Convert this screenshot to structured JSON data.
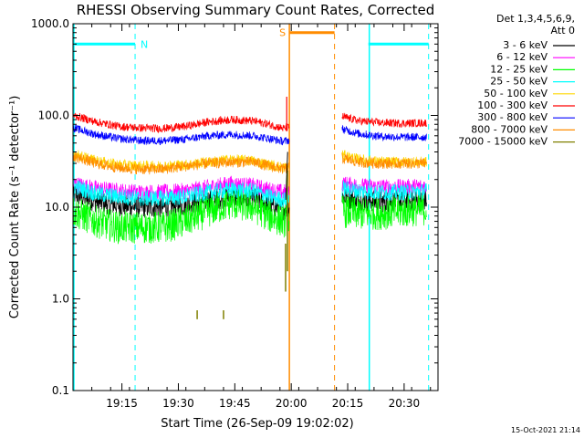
{
  "chart_data": {
    "type": "line",
    "title": "RHESSI Observing Summary Count Rates, Corrected",
    "xlabel": "Start Time (26-Sep-09 19:02:02)",
    "ylabel": "Corrected Count Rate (s⁻¹ detector⁻¹)",
    "y_scale": "log",
    "ylim": [
      0.1,
      1000
    ],
    "xlim_minutes": [
      0,
      97
    ],
    "x_ticks": [
      {
        "minute": 13,
        "label": "19:15"
      },
      {
        "minute": 28,
        "label": "19:30"
      },
      {
        "minute": 43,
        "label": "19:45"
      },
      {
        "minute": 58,
        "label": "20:00"
      },
      {
        "minute": 73,
        "label": "20:15"
      },
      {
        "minute": 88,
        "label": "20:30"
      }
    ],
    "y_ticks": [
      {
        "value": 0.1,
        "label": "0.1"
      },
      {
        "value": 1,
        "label": "1.0"
      },
      {
        "value": 10,
        "label": "10.0"
      },
      {
        "value": 100,
        "label": "100.0"
      },
      {
        "value": 1000,
        "label": "1000.0"
      }
    ],
    "legend_header": [
      "Det 1,3,4,5,6,9,",
      "Att 0"
    ],
    "legend_position": "right",
    "timestamp": "15-Oct-2021 21:14",
    "gap_minutes": [
      57.5,
      71.5
    ],
    "series": [
      {
        "name": "3 - 6 keV",
        "color": "#000000",
        "noise": 0.08,
        "values": [
          [
            0,
            14
          ],
          [
            6,
            11.5
          ],
          [
            12,
            10.5
          ],
          [
            18,
            10
          ],
          [
            24,
            10
          ],
          [
            30,
            10.5
          ],
          [
            36,
            12
          ],
          [
            42,
            13
          ],
          [
            48,
            12.5
          ],
          [
            52,
            10.5
          ],
          [
            56,
            9.5
          ],
          [
            57.5,
            10
          ],
          [
            71.5,
            13
          ],
          [
            76,
            12
          ],
          [
            82,
            11.5
          ],
          [
            88,
            11.5
          ],
          [
            94,
            12
          ]
        ]
      },
      {
        "name": "6 - 12 keV",
        "color": "#ff00ff",
        "noise": 0.06,
        "values": [
          [
            0,
            18
          ],
          [
            6,
            16
          ],
          [
            12,
            15
          ],
          [
            18,
            14.5
          ],
          [
            24,
            14.5
          ],
          [
            30,
            15
          ],
          [
            36,
            16.5
          ],
          [
            42,
            18
          ],
          [
            48,
            17
          ],
          [
            52,
            15.5
          ],
          [
            56,
            14.5
          ],
          [
            57.5,
            15
          ],
          [
            71.5,
            18
          ],
          [
            76,
            17
          ],
          [
            82,
            16.5
          ],
          [
            88,
            16.5
          ],
          [
            94,
            17
          ]
        ]
      },
      {
        "name": "12 - 25 keV",
        "color": "#00ff00",
        "noise": 0.12,
        "values": [
          [
            0,
            9
          ],
          [
            6,
            7
          ],
          [
            12,
            6
          ],
          [
            18,
            6
          ],
          [
            24,
            6
          ],
          [
            30,
            7
          ],
          [
            36,
            9
          ],
          [
            42,
            11
          ],
          [
            48,
            10
          ],
          [
            52,
            8
          ],
          [
            56,
            7
          ],
          [
            57.5,
            7.5
          ],
          [
            71.5,
            9
          ],
          [
            76,
            8.5
          ],
          [
            82,
            8.5
          ],
          [
            88,
            9
          ],
          [
            94,
            9.5
          ]
        ]
      },
      {
        "name": "25 - 50 keV",
        "color": "#00ffff",
        "noise": 0.06,
        "values": [
          [
            0,
            17
          ],
          [
            6,
            14
          ],
          [
            12,
            13
          ],
          [
            18,
            12.5
          ],
          [
            24,
            12.5
          ],
          [
            30,
            13
          ],
          [
            36,
            14.5
          ],
          [
            42,
            15.5
          ],
          [
            48,
            15
          ],
          [
            52,
            13
          ],
          [
            56,
            12
          ],
          [
            57.5,
            12.5
          ],
          [
            71.5,
            16
          ],
          [
            76,
            15
          ],
          [
            82,
            14.5
          ],
          [
            88,
            14.5
          ],
          [
            94,
            15
          ]
        ]
      },
      {
        "name": "50 - 100 keV",
        "color": "#ffd700",
        "noise": 0.04,
        "values": [
          [
            0,
            38
          ],
          [
            6,
            32
          ],
          [
            12,
            29
          ],
          [
            18,
            28
          ],
          [
            24,
            28
          ],
          [
            30,
            29
          ],
          [
            36,
            31
          ],
          [
            42,
            33
          ],
          [
            48,
            32
          ],
          [
            52,
            29
          ],
          [
            56,
            27
          ],
          [
            57.5,
            28
          ],
          [
            71.5,
            37
          ],
          [
            76,
            33
          ],
          [
            82,
            31
          ],
          [
            88,
            31
          ],
          [
            94,
            31
          ]
        ]
      },
      {
        "name": "100 - 300 keV",
        "color": "#ff0000",
        "noise": 0.03,
        "values": [
          [
            0,
            100
          ],
          [
            6,
            85
          ],
          [
            12,
            76
          ],
          [
            18,
            73
          ],
          [
            24,
            72
          ],
          [
            30,
            76
          ],
          [
            36,
            85
          ],
          [
            42,
            90
          ],
          [
            48,
            87
          ],
          [
            52,
            80
          ],
          [
            56,
            72
          ],
          [
            57.5,
            74
          ],
          [
            71.5,
            97
          ],
          [
            76,
            87
          ],
          [
            82,
            83
          ],
          [
            88,
            82
          ],
          [
            94,
            83
          ]
        ]
      },
      {
        "name": "300 - 800 keV",
        "color": "#0000ff",
        "noise": 0.03,
        "values": [
          [
            0,
            73
          ],
          [
            6,
            62
          ],
          [
            12,
            56
          ],
          [
            18,
            53
          ],
          [
            24,
            53
          ],
          [
            30,
            55
          ],
          [
            36,
            60
          ],
          [
            42,
            62
          ],
          [
            48,
            60
          ],
          [
            52,
            56
          ],
          [
            56,
            52
          ],
          [
            57.5,
            54
          ],
          [
            71.5,
            71
          ],
          [
            76,
            63
          ],
          [
            82,
            59
          ],
          [
            88,
            58
          ],
          [
            94,
            58
          ]
        ]
      },
      {
        "name": "800 - 7000 keV",
        "color": "#ff8c00",
        "noise": 0.04,
        "values": [
          [
            0,
            36
          ],
          [
            6,
            30
          ],
          [
            12,
            27
          ],
          [
            18,
            26
          ],
          [
            24,
            26
          ],
          [
            30,
            28
          ],
          [
            36,
            30
          ],
          [
            42,
            31
          ],
          [
            48,
            31
          ],
          [
            52,
            28
          ],
          [
            56,
            26
          ],
          [
            57.5,
            27
          ],
          [
            71.5,
            34
          ],
          [
            76,
            31
          ],
          [
            82,
            30
          ],
          [
            88,
            30
          ],
          [
            94,
            30
          ]
        ]
      },
      {
        "name": "7000 - 15000 keV",
        "color": "#808000",
        "noise": 0,
        "values": [
          [
            33,
            0.6
          ],
          [
            33,
            0.75
          ],
          [
            40,
            0.6
          ],
          [
            40,
            0.75
          ],
          [
            56.5,
            1.2
          ],
          [
            56.5,
            4
          ],
          [
            57,
            2
          ],
          [
            57,
            25
          ]
        ]
      }
    ],
    "flare_spike": {
      "minute": 56.8,
      "peak": 160
    },
    "annotations": {
      "saa_label": "N",
      "saa_color": "#00ffff",
      "saa_bars": [
        [
          0,
          16.5
        ],
        [
          78.5,
          94.5
        ]
      ],
      "saa_bar_value": 600,
      "saa_dashed": [
        16.5,
        94.5
      ],
      "saa_solid": [
        0,
        78.5
      ],
      "sa_label": "S",
      "sa_color": "#ff8c00",
      "sa_bar": [
        57.5,
        69.5
      ],
      "sa_bar_value": 800,
      "sa_solid": [
        57.5
      ],
      "sa_dashed": [
        69.5
      ]
    }
  }
}
